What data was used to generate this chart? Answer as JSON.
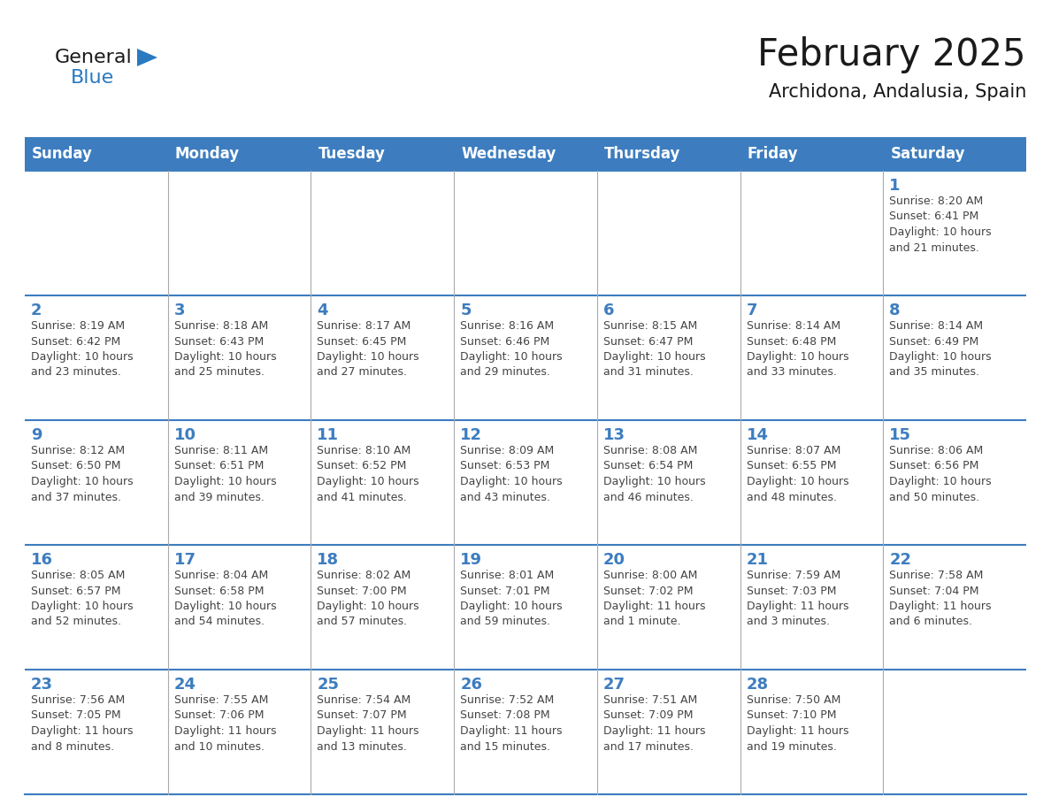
{
  "title": "February 2025",
  "subtitle": "Archidona, Andalusia, Spain",
  "header_color": "#3d7dbf",
  "header_text_color": "#ffffff",
  "cell_bg_color": "#ffffff",
  "border_color": "#3d7dbf",
  "thin_border_color": "#aaaaaa",
  "title_color": "#1a1a1a",
  "subtitle_color": "#1a1a1a",
  "day_number_color": "#3d7dbf",
  "day_info_color": "#444444",
  "day_names": [
    "Sunday",
    "Monday",
    "Tuesday",
    "Wednesday",
    "Thursday",
    "Friday",
    "Saturday"
  ],
  "calendar_data": [
    [
      {
        "day": null,
        "info": ""
      },
      {
        "day": null,
        "info": ""
      },
      {
        "day": null,
        "info": ""
      },
      {
        "day": null,
        "info": ""
      },
      {
        "day": null,
        "info": ""
      },
      {
        "day": null,
        "info": ""
      },
      {
        "day": 1,
        "info": "Sunrise: 8:20 AM\nSunset: 6:41 PM\nDaylight: 10 hours\nand 21 minutes."
      }
    ],
    [
      {
        "day": 2,
        "info": "Sunrise: 8:19 AM\nSunset: 6:42 PM\nDaylight: 10 hours\nand 23 minutes."
      },
      {
        "day": 3,
        "info": "Sunrise: 8:18 AM\nSunset: 6:43 PM\nDaylight: 10 hours\nand 25 minutes."
      },
      {
        "day": 4,
        "info": "Sunrise: 8:17 AM\nSunset: 6:45 PM\nDaylight: 10 hours\nand 27 minutes."
      },
      {
        "day": 5,
        "info": "Sunrise: 8:16 AM\nSunset: 6:46 PM\nDaylight: 10 hours\nand 29 minutes."
      },
      {
        "day": 6,
        "info": "Sunrise: 8:15 AM\nSunset: 6:47 PM\nDaylight: 10 hours\nand 31 minutes."
      },
      {
        "day": 7,
        "info": "Sunrise: 8:14 AM\nSunset: 6:48 PM\nDaylight: 10 hours\nand 33 minutes."
      },
      {
        "day": 8,
        "info": "Sunrise: 8:14 AM\nSunset: 6:49 PM\nDaylight: 10 hours\nand 35 minutes."
      }
    ],
    [
      {
        "day": 9,
        "info": "Sunrise: 8:12 AM\nSunset: 6:50 PM\nDaylight: 10 hours\nand 37 minutes."
      },
      {
        "day": 10,
        "info": "Sunrise: 8:11 AM\nSunset: 6:51 PM\nDaylight: 10 hours\nand 39 minutes."
      },
      {
        "day": 11,
        "info": "Sunrise: 8:10 AM\nSunset: 6:52 PM\nDaylight: 10 hours\nand 41 minutes."
      },
      {
        "day": 12,
        "info": "Sunrise: 8:09 AM\nSunset: 6:53 PM\nDaylight: 10 hours\nand 43 minutes."
      },
      {
        "day": 13,
        "info": "Sunrise: 8:08 AM\nSunset: 6:54 PM\nDaylight: 10 hours\nand 46 minutes."
      },
      {
        "day": 14,
        "info": "Sunrise: 8:07 AM\nSunset: 6:55 PM\nDaylight: 10 hours\nand 48 minutes."
      },
      {
        "day": 15,
        "info": "Sunrise: 8:06 AM\nSunset: 6:56 PM\nDaylight: 10 hours\nand 50 minutes."
      }
    ],
    [
      {
        "day": 16,
        "info": "Sunrise: 8:05 AM\nSunset: 6:57 PM\nDaylight: 10 hours\nand 52 minutes."
      },
      {
        "day": 17,
        "info": "Sunrise: 8:04 AM\nSunset: 6:58 PM\nDaylight: 10 hours\nand 54 minutes."
      },
      {
        "day": 18,
        "info": "Sunrise: 8:02 AM\nSunset: 7:00 PM\nDaylight: 10 hours\nand 57 minutes."
      },
      {
        "day": 19,
        "info": "Sunrise: 8:01 AM\nSunset: 7:01 PM\nDaylight: 10 hours\nand 59 minutes."
      },
      {
        "day": 20,
        "info": "Sunrise: 8:00 AM\nSunset: 7:02 PM\nDaylight: 11 hours\nand 1 minute."
      },
      {
        "day": 21,
        "info": "Sunrise: 7:59 AM\nSunset: 7:03 PM\nDaylight: 11 hours\nand 3 minutes."
      },
      {
        "day": 22,
        "info": "Sunrise: 7:58 AM\nSunset: 7:04 PM\nDaylight: 11 hours\nand 6 minutes."
      }
    ],
    [
      {
        "day": 23,
        "info": "Sunrise: 7:56 AM\nSunset: 7:05 PM\nDaylight: 11 hours\nand 8 minutes."
      },
      {
        "day": 24,
        "info": "Sunrise: 7:55 AM\nSunset: 7:06 PM\nDaylight: 11 hours\nand 10 minutes."
      },
      {
        "day": 25,
        "info": "Sunrise: 7:54 AM\nSunset: 7:07 PM\nDaylight: 11 hours\nand 13 minutes."
      },
      {
        "day": 26,
        "info": "Sunrise: 7:52 AM\nSunset: 7:08 PM\nDaylight: 11 hours\nand 15 minutes."
      },
      {
        "day": 27,
        "info": "Sunrise: 7:51 AM\nSunset: 7:09 PM\nDaylight: 11 hours\nand 17 minutes."
      },
      {
        "day": 28,
        "info": "Sunrise: 7:50 AM\nSunset: 7:10 PM\nDaylight: 11 hours\nand 19 minutes."
      },
      {
        "day": null,
        "info": ""
      }
    ]
  ],
  "logo_color_general": "#1a1a1a",
  "logo_color_blue": "#2a7abf",
  "logo_triangle_color": "#2a7abf"
}
